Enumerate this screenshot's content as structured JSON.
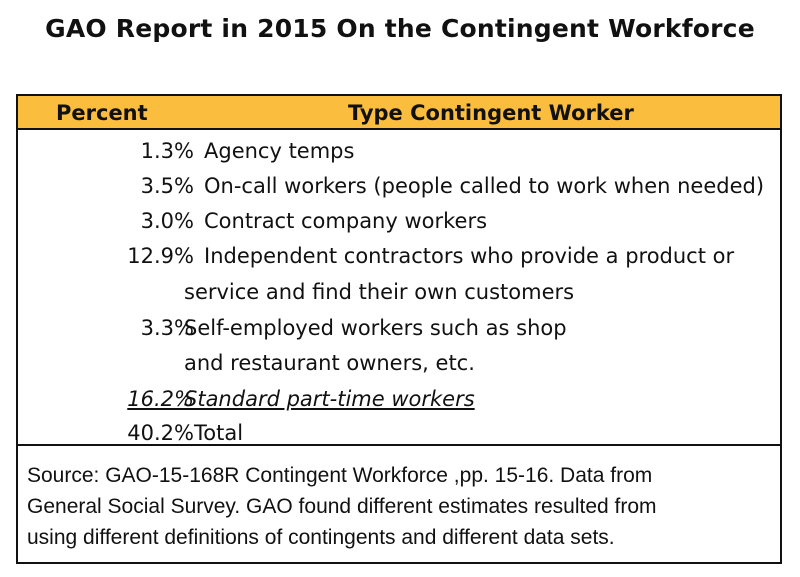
{
  "title": "GAO Report in 2015 On the Contingent Workforce",
  "table": {
    "header_percent": "Percent",
    "header_type": "Type Contingent Worker",
    "rows": [
      {
        "percent": "1.3%",
        "label": "Agency temps"
      },
      {
        "percent": "3.5%",
        "label": "On-call workers (people called to work when needed)"
      },
      {
        "percent": "3.0%",
        "label": "Contract company workers"
      },
      {
        "percent": "12.9%",
        "label": "Independent contractors who provide a product or",
        "label2": "service and find their own customers"
      },
      {
        "percent": "3.3%",
        "label": "Self-employed workers such as shop",
        "label2": "and restaurant owners, etc."
      },
      {
        "percent": "16.2%",
        "label": "Standard part-time workers"
      },
      {
        "percent": "40.2%",
        "label": "Total"
      }
    ]
  },
  "source": {
    "line1": "Source: GAO-15-168R Contingent Workforce ,pp. 15-16. Data from",
    "line2": "General Social Survey. GAO found different estimates resulted from",
    "line3": "using different definitions of contingents and different data sets."
  },
  "colors": {
    "header_bg": "#fbbd3e",
    "border": "#111111"
  }
}
